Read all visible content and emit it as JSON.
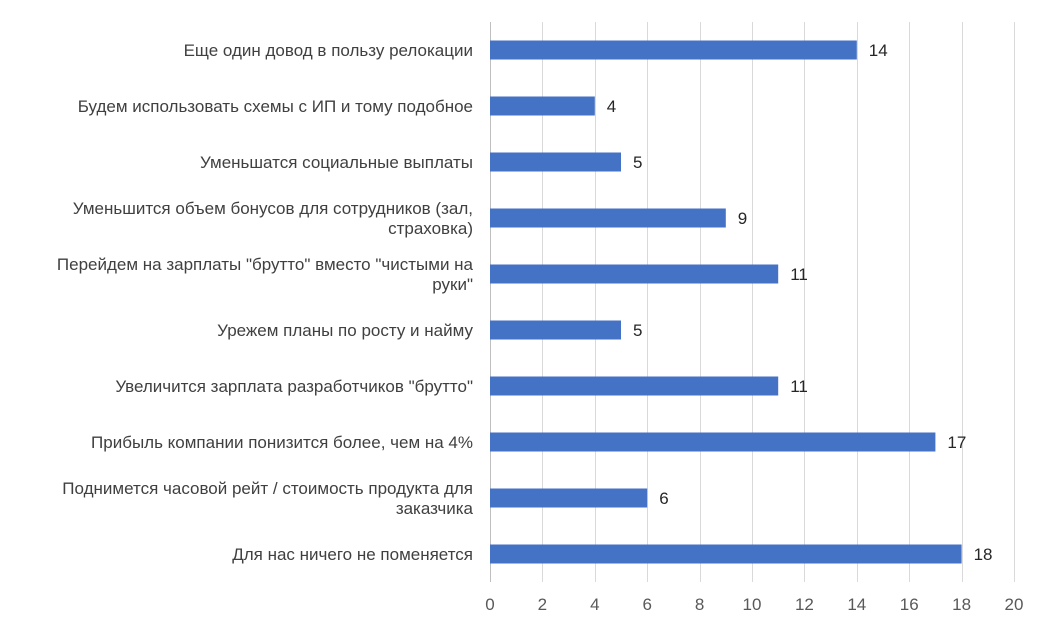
{
  "chart_data": {
    "type": "bar",
    "orientation": "horizontal",
    "title": "",
    "xlabel": "",
    "ylabel": "",
    "xlim": [
      0,
      20
    ],
    "ticks": [
      0,
      2,
      4,
      6,
      8,
      10,
      12,
      14,
      16,
      18,
      20
    ],
    "grid": true,
    "bar_color": "#4472c4",
    "categories": [
      [
        "Еще один довод в пользу релокации"
      ],
      [
        "Будем использовать схемы с ИП и тому подобное"
      ],
      [
        "Уменьшатся социальные выплаты"
      ],
      [
        "Уменьшится объем бонусов для сотрудников (зал,",
        "страховка)"
      ],
      [
        "Перейдем на зарплаты \"брутто\" вместо \"чистыми на",
        "руки\""
      ],
      [
        "Урежем планы по росту и найму"
      ],
      [
        "Увеличится зарплата разработчиков \"брутто\""
      ],
      [
        "Прибыль компании понизится более, чем на 4%"
      ],
      [
        "Поднимется часовой рейт / стоимость продукта для",
        "заказчика"
      ],
      [
        "Для нас ничего не поменяется"
      ]
    ],
    "values": [
      14,
      4,
      5,
      9,
      11,
      5,
      11,
      17,
      6,
      18
    ]
  }
}
